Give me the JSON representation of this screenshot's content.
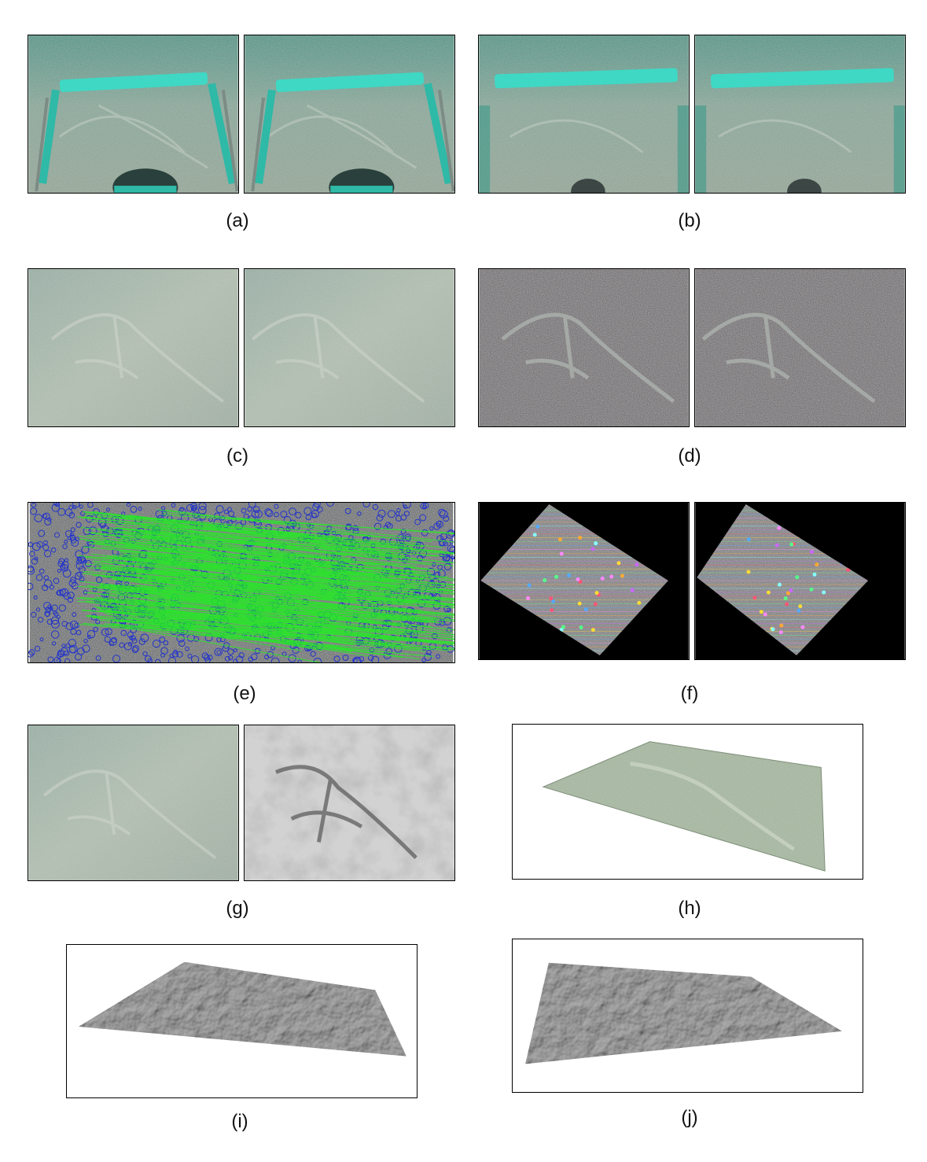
{
  "figure": {
    "panels": [
      {
        "id": "a",
        "caption": "(a)"
      },
      {
        "id": "b",
        "caption": "(b)"
      },
      {
        "id": "c",
        "caption": "(c)"
      },
      {
        "id": "d",
        "caption": "(d)"
      },
      {
        "id": "e",
        "caption": "(e)"
      },
      {
        "id": "f",
        "caption": "(f)"
      },
      {
        "id": "g",
        "caption": "(g)"
      },
      {
        "id": "h",
        "caption": "(h)"
      },
      {
        "id": "i",
        "caption": "(i)"
      },
      {
        "id": "j",
        "caption": "(j)"
      }
    ]
  },
  "colors": {
    "underwater_teal": "#4a8f82",
    "seabed_sand": "#a9b7a5",
    "seabed_dark": "#5a5459",
    "frame_cyan": "#39d6c2",
    "match_line_green": "#22ee22",
    "keypoint_blue": "#2233cc",
    "depth_gray": "#c8c8c8",
    "mesh_gray": "#7d7d7d"
  }
}
